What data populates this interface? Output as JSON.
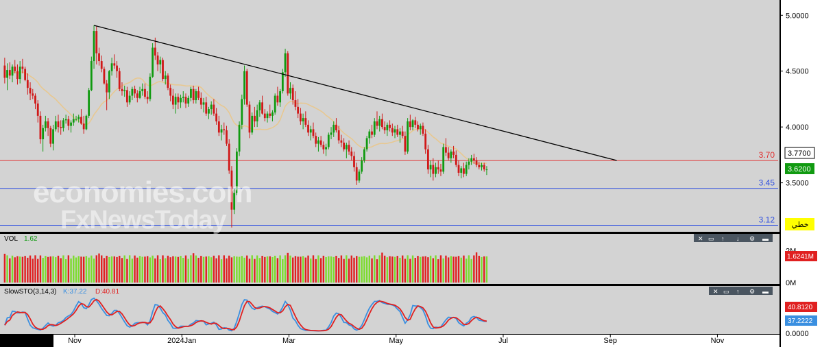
{
  "colors": {
    "panel_bg": "#d3d3d3",
    "frame_bg": "#000000",
    "axis_bg": "#ffffff",
    "up": "#109a10",
    "down": "#d01818",
    "vol_up": "#7cdc2c",
    "vol_down": "#e02020",
    "ma": "#e8c890",
    "trendline": "#000000",
    "resistance": "#e03030",
    "support": "#3050e0",
    "stoch_k": "#3a8fe0",
    "stoch_d": "#e02020",
    "label_last": "#109a10",
    "label_lang": "#ffff00"
  },
  "watermark": {
    "line1": "economies.com",
    "line2": "FxNewsToday"
  },
  "chart_data": [
    {
      "type": "candlestick",
      "panel": "price",
      "y_axis_labels": [
        "5.0000",
        "4.5000",
        "4.0000",
        "3.5000"
      ],
      "y_axis_values": [
        5.0,
        4.5,
        4.0,
        3.5
      ],
      "ylim": [
        3.08,
        5.1
      ],
      "x_tick_labels": [
        "Nov",
        "2024Jan",
        "Mar",
        "May",
        "Jul",
        "Sep",
        "Nov"
      ],
      "ohlc": [
        [
          4.55,
          4.62,
          4.39,
          4.44
        ],
        [
          4.44,
          4.57,
          4.33,
          4.51
        ],
        [
          4.51,
          4.58,
          4.43,
          4.46
        ],
        [
          4.46,
          4.56,
          4.4,
          4.54
        ],
        [
          4.54,
          4.6,
          4.48,
          4.5
        ],
        [
          4.5,
          4.56,
          4.38,
          4.43
        ],
        [
          4.43,
          4.59,
          4.39,
          4.54
        ],
        [
          4.54,
          4.61,
          4.48,
          4.52
        ],
        [
          4.52,
          4.54,
          4.41,
          4.42
        ],
        [
          4.42,
          4.48,
          4.29,
          4.35
        ],
        [
          4.35,
          4.4,
          4.24,
          4.3
        ],
        [
          4.3,
          4.34,
          4.25,
          4.28
        ],
        [
          4.28,
          4.3,
          4.16,
          4.21
        ],
        [
          4.21,
          4.24,
          4.04,
          4.1
        ],
        [
          4.1,
          4.14,
          3.85,
          3.89
        ],
        [
          3.89,
          4.02,
          3.78,
          3.99
        ],
        [
          3.99,
          4.1,
          3.96,
          4.05
        ],
        [
          4.05,
          4.08,
          3.92,
          3.99
        ],
        [
          3.99,
          4.01,
          3.82,
          3.85
        ],
        [
          3.85,
          4.02,
          3.79,
          3.98
        ],
        [
          3.98,
          4.1,
          3.96,
          4.05
        ],
        [
          4.05,
          4.11,
          3.95,
          4.0
        ],
        [
          4.0,
          4.06,
          3.93,
          3.99
        ],
        [
          3.99,
          4.08,
          3.96,
          4.06
        ],
        [
          4.06,
          4.11,
          4.03,
          4.07
        ],
        [
          4.07,
          4.1,
          3.97,
          4.01
        ],
        [
          4.01,
          4.06,
          3.95,
          4.04
        ],
        [
          4.04,
          4.12,
          4.01,
          4.07
        ],
        [
          4.07,
          4.1,
          4.05,
          4.07
        ],
        [
          4.07,
          4.11,
          4.04,
          4.09
        ],
        [
          4.09,
          4.16,
          4.02,
          4.03
        ],
        [
          4.03,
          4.1,
          3.94,
          3.98
        ],
        [
          3.98,
          4.11,
          3.97,
          4.1
        ],
        [
          4.1,
          4.35,
          4.08,
          4.33
        ],
        [
          4.33,
          4.63,
          4.32,
          4.59
        ],
        [
          4.59,
          4.91,
          4.52,
          4.86
        ],
        [
          4.86,
          4.9,
          4.56,
          4.66
        ],
        [
          4.66,
          4.71,
          4.55,
          4.59
        ],
        [
          4.59,
          4.64,
          4.49,
          4.52
        ],
        [
          4.52,
          4.54,
          4.38,
          4.39
        ],
        [
          4.39,
          4.42,
          4.15,
          4.31
        ],
        [
          4.31,
          4.51,
          4.25,
          4.5
        ],
        [
          4.5,
          4.62,
          4.46,
          4.57
        ],
        [
          4.57,
          4.65,
          4.52,
          4.55
        ],
        [
          4.55,
          4.59,
          4.44,
          4.5
        ],
        [
          4.5,
          4.53,
          4.32,
          4.34
        ],
        [
          4.34,
          4.4,
          4.28,
          4.32
        ],
        [
          4.32,
          4.37,
          4.27,
          4.33
        ],
        [
          4.33,
          4.36,
          4.18,
          4.22
        ],
        [
          4.22,
          4.32,
          4.2,
          4.28
        ],
        [
          4.28,
          4.36,
          4.24,
          4.34
        ],
        [
          4.34,
          4.37,
          4.26,
          4.3
        ],
        [
          4.3,
          4.33,
          4.22,
          4.26
        ],
        [
          4.26,
          4.36,
          4.25,
          4.32
        ],
        [
          4.32,
          4.39,
          4.28,
          4.34
        ],
        [
          4.34,
          4.39,
          4.25,
          4.27
        ],
        [
          4.27,
          4.32,
          4.21,
          4.25
        ],
        [
          4.25,
          4.48,
          4.23,
          4.45
        ],
        [
          4.45,
          4.75,
          4.44,
          4.71
        ],
        [
          4.71,
          4.8,
          4.6,
          4.64
        ],
        [
          4.64,
          4.67,
          4.5,
          4.56
        ],
        [
          4.56,
          4.63,
          4.48,
          4.6
        ],
        [
          4.6,
          4.62,
          4.41,
          4.43
        ],
        [
          4.43,
          4.5,
          4.38,
          4.46
        ],
        [
          4.46,
          4.48,
          4.33,
          4.35
        ],
        [
          4.35,
          4.38,
          4.23,
          4.28
        ],
        [
          4.28,
          4.34,
          4.16,
          4.2
        ],
        [
          4.2,
          4.3,
          4.12,
          4.27
        ],
        [
          4.27,
          4.3,
          4.16,
          4.22
        ],
        [
          4.22,
          4.29,
          4.17,
          4.26
        ],
        [
          4.26,
          4.32,
          4.22,
          4.27
        ],
        [
          4.27,
          4.3,
          4.17,
          4.21
        ],
        [
          4.21,
          4.28,
          4.18,
          4.26
        ],
        [
          4.26,
          4.36,
          4.23,
          4.34
        ],
        [
          4.34,
          4.37,
          4.21,
          4.24
        ],
        [
          4.24,
          4.34,
          4.21,
          4.32
        ],
        [
          4.32,
          4.36,
          4.24,
          4.26
        ],
        [
          4.26,
          4.31,
          4.16,
          4.2
        ],
        [
          4.2,
          4.26,
          4.13,
          4.22
        ],
        [
          4.22,
          4.27,
          4.1,
          4.12
        ],
        [
          4.12,
          4.18,
          4.07,
          4.16
        ],
        [
          4.16,
          4.23,
          4.11,
          4.2
        ],
        [
          4.2,
          4.25,
          4.1,
          4.12
        ],
        [
          4.12,
          4.17,
          4.02,
          4.05
        ],
        [
          4.05,
          4.1,
          3.92,
          3.95
        ],
        [
          3.95,
          4.02,
          3.88,
          3.98
        ],
        [
          3.98,
          4.04,
          3.93,
          3.97
        ],
        [
          3.97,
          4.01,
          3.83,
          3.85
        ],
        [
          3.85,
          3.89,
          3.58,
          3.61
        ],
        [
          3.61,
          3.65,
          3.1,
          3.26
        ],
        [
          3.26,
          3.45,
          3.22,
          3.41
        ],
        [
          3.41,
          3.81,
          3.39,
          3.78
        ],
        [
          3.78,
          4.05,
          3.74,
          4.02
        ],
        [
          4.02,
          4.29,
          3.98,
          4.25
        ],
        [
          4.25,
          4.55,
          4.2,
          4.5
        ],
        [
          4.5,
          4.52,
          4.18,
          4.2
        ],
        [
          4.2,
          4.23,
          3.9,
          3.95
        ],
        [
          3.95,
          4.13,
          3.93,
          4.1
        ],
        [
          4.1,
          4.18,
          4.0,
          4.05
        ],
        [
          4.05,
          4.2,
          4.0,
          4.15
        ],
        [
          4.15,
          4.24,
          4.09,
          4.22
        ],
        [
          4.22,
          4.28,
          4.11,
          4.12
        ],
        [
          4.12,
          4.16,
          4.05,
          4.08
        ],
        [
          4.08,
          4.14,
          4.04,
          4.12
        ],
        [
          4.12,
          4.2,
          4.08,
          4.1
        ],
        [
          4.1,
          4.15,
          4.05,
          4.13
        ],
        [
          4.13,
          4.3,
          4.11,
          4.28
        ],
        [
          4.28,
          4.36,
          4.19,
          4.22
        ],
        [
          4.22,
          4.34,
          4.18,
          4.32
        ],
        [
          4.32,
          4.52,
          4.3,
          4.49
        ],
        [
          4.49,
          4.7,
          4.45,
          4.66
        ],
        [
          4.66,
          4.68,
          4.28,
          4.3
        ],
        [
          4.3,
          4.4,
          4.25,
          4.35
        ],
        [
          4.35,
          4.38,
          4.2,
          4.24
        ],
        [
          4.24,
          4.32,
          4.15,
          4.18
        ],
        [
          4.18,
          4.25,
          4.08,
          4.12
        ],
        [
          4.12,
          4.17,
          4.02,
          4.05
        ],
        [
          4.05,
          4.12,
          3.98,
          4.08
        ],
        [
          4.08,
          4.14,
          4.0,
          4.02
        ],
        [
          4.02,
          4.06,
          3.92,
          3.95
        ],
        [
          3.95,
          4.01,
          3.88,
          3.98
        ],
        [
          3.98,
          4.04,
          3.9,
          3.92
        ],
        [
          3.92,
          3.95,
          3.82,
          3.85
        ],
        [
          3.85,
          3.91,
          3.78,
          3.88
        ],
        [
          3.88,
          3.92,
          3.82,
          3.84
        ],
        [
          3.84,
          3.87,
          3.76,
          3.8
        ],
        [
          3.8,
          3.85,
          3.74,
          3.82
        ],
        [
          3.82,
          3.95,
          3.8,
          3.93
        ],
        [
          3.93,
          4.0,
          3.89,
          3.95
        ],
        [
          3.95,
          4.05,
          3.91,
          4.02
        ],
        [
          4.02,
          4.08,
          3.95,
          3.97
        ],
        [
          3.97,
          4.01,
          3.85,
          3.88
        ],
        [
          3.88,
          3.93,
          3.82,
          3.86
        ],
        [
          3.86,
          3.9,
          3.78,
          3.8
        ],
        [
          3.8,
          3.86,
          3.72,
          3.84
        ],
        [
          3.84,
          3.88,
          3.75,
          3.78
        ],
        [
          3.78,
          3.82,
          3.7,
          3.74
        ],
        [
          3.74,
          3.78,
          3.6,
          3.64
        ],
        [
          3.64,
          3.68,
          3.48,
          3.52
        ],
        [
          3.52,
          3.62,
          3.5,
          3.6
        ],
        [
          3.6,
          3.73,
          3.58,
          3.7
        ],
        [
          3.7,
          3.82,
          3.68,
          3.8
        ],
        [
          3.8,
          3.92,
          3.78,
          3.9
        ],
        [
          3.9,
          3.98,
          3.85,
          3.96
        ],
        [
          3.96,
          4.02,
          3.9,
          3.93
        ],
        [
          3.93,
          4.08,
          3.91,
          4.05
        ],
        [
          4.05,
          4.14,
          3.98,
          4.01
        ],
        [
          4.01,
          4.1,
          3.96,
          4.07
        ],
        [
          4.07,
          4.12,
          3.98,
          4.0
        ],
        [
          4.0,
          4.05,
          3.94,
          3.97
        ],
        [
          3.97,
          4.04,
          3.92,
          4.02
        ],
        [
          4.02,
          4.06,
          3.96,
          3.99
        ],
        [
          3.99,
          4.03,
          3.92,
          3.95
        ],
        [
          3.95,
          4.01,
          3.9,
          3.98
        ],
        [
          3.98,
          4.02,
          3.91,
          3.93
        ],
        [
          3.93,
          3.99,
          3.86,
          3.96
        ],
        [
          3.96,
          4.01,
          3.9,
          3.92
        ],
        [
          3.92,
          3.96,
          3.75,
          3.78
        ],
        [
          3.78,
          4.08,
          3.76,
          4.05
        ],
        [
          4.05,
          4.11,
          3.97,
          4.0
        ],
        [
          4.0,
          4.07,
          3.97,
          4.06
        ],
        [
          4.06,
          4.09,
          3.99,
          4.02
        ],
        [
          4.02,
          4.05,
          3.96,
          3.98
        ],
        [
          3.98,
          4.03,
          3.93,
          4.01
        ],
        [
          4.01,
          4.04,
          3.92,
          3.94
        ],
        [
          3.94,
          3.98,
          3.76,
          3.8
        ],
        [
          3.8,
          3.84,
          3.58,
          3.62
        ],
        [
          3.62,
          3.7,
          3.55,
          3.66
        ],
        [
          3.66,
          3.72,
          3.52,
          3.58
        ],
        [
          3.58,
          3.68,
          3.55,
          3.64
        ],
        [
          3.64,
          3.7,
          3.58,
          3.62
        ],
        [
          3.62,
          3.67,
          3.56,
          3.6
        ],
        [
          3.6,
          3.85,
          3.58,
          3.82
        ],
        [
          3.82,
          3.9,
          3.74,
          3.77
        ],
        [
          3.77,
          3.82,
          3.7,
          3.72
        ],
        [
          3.72,
          3.8,
          3.68,
          3.78
        ],
        [
          3.78,
          3.83,
          3.72,
          3.75
        ],
        [
          3.75,
          3.79,
          3.64,
          3.66
        ],
        [
          3.66,
          3.7,
          3.56,
          3.59
        ],
        [
          3.59,
          3.65,
          3.54,
          3.63
        ],
        [
          3.63,
          3.68,
          3.55,
          3.58
        ],
        [
          3.58,
          3.69,
          3.56,
          3.66
        ],
        [
          3.66,
          3.72,
          3.62,
          3.69
        ],
        [
          3.69,
          3.75,
          3.66,
          3.72
        ],
        [
          3.72,
          3.76,
          3.67,
          3.7
        ],
        [
          3.7,
          3.73,
          3.64,
          3.66
        ],
        [
          3.66,
          3.69,
          3.62,
          3.64
        ],
        [
          3.64,
          3.68,
          3.61,
          3.66
        ],
        [
          3.66,
          3.68,
          3.6,
          3.62
        ],
        [
          3.62,
          3.65,
          3.57,
          3.62
        ]
      ],
      "moving_average_color": "ma",
      "horizontal_levels": [
        {
          "value": 3.7,
          "label": "3.70",
          "color": "resistance"
        },
        {
          "value": 3.45,
          "label": "3.45",
          "color": "support"
        },
        {
          "value": 3.12,
          "label": "3.12",
          "color": "support"
        }
      ],
      "trendline": {
        "from": {
          "bar": 35,
          "value": 4.91
        },
        "to": {
          "bar": 240,
          "value": 3.7
        }
      },
      "last_price_label": "3.6200",
      "ma_value_label": "3.7700",
      "lang_label": "خطي"
    },
    {
      "type": "bar",
      "panel": "volume",
      "title": "VOL",
      "value_text": "1.62",
      "y_axis_labels": [
        "2M",
        "0M"
      ],
      "y_axis_values": [
        2,
        0
      ],
      "unit": "M",
      "last_label": "1.6241M"
    },
    {
      "type": "line",
      "panel": "stochastic",
      "title": "SlowSTO(3,14,3)",
      "k_label": "K:37.22",
      "d_label": "D:40.81",
      "y_axis_labels": [
        "0.0000"
      ],
      "y_axis_values": [
        0
      ],
      "ylim": [
        0,
        100
      ],
      "series": [
        {
          "name": "K",
          "last": "37.2222",
          "color": "stoch_k"
        },
        {
          "name": "D",
          "last": "40.8120",
          "color": "stoch_d"
        }
      ]
    }
  ]
}
